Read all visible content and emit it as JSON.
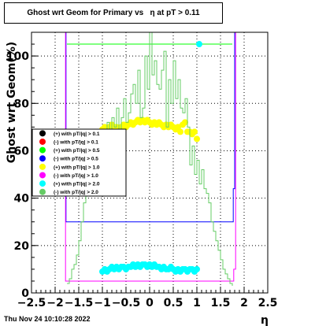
{
  "title": "Ghost wrt Geom for Primary vs   η at pT > 0.11",
  "footer": "Thu Nov 24 10:10:28 2022",
  "colors": {
    "black": "#000000",
    "red": "#ff0000",
    "green": "#00ff00",
    "blue": "#0000ff",
    "yellow": "#ffff00",
    "magenta": "#ff00ff",
    "cyan": "#00ffff",
    "lightgreen": "#66cc66"
  },
  "chart_data": {
    "type": "scatter",
    "title": "Ghost wrt Geom for Primary vs   η at pT > 0.11",
    "xlabel": "η",
    "ylabel": "Ghost wrt Geom(%)",
    "xlim": [
      -2.5,
      2.5
    ],
    "ylim": [
      0,
      110
    ],
    "xticks": [
      -2.5,
      -2,
      -1.5,
      -1,
      -0.5,
      0,
      0.5,
      1,
      1.5,
      2,
      2.5
    ],
    "xtick_labels": [
      "−2.5",
      "−2",
      "−1.5",
      "−1",
      "−0.5",
      "0",
      "0.5",
      "1",
      "1.5",
      "2",
      "2.5"
    ],
    "yticks": [
      0,
      20,
      40,
      60,
      80,
      100
    ],
    "ytick_labels": [
      "0",
      "20",
      "40",
      "60",
      "80",
      "100"
    ],
    "grid": true,
    "legend_position": "left-middle",
    "series": [
      {
        "name": "(+) with pT/|q| > 0.1",
        "color": "#000000",
        "style": "marker",
        "x": [],
        "y": []
      },
      {
        "name": "(-) with pT/|q| > 0.1",
        "color": "#ff0000",
        "style": "marker",
        "x": [],
        "y": []
      },
      {
        "name": "(+) with pT/|q| > 0.5",
        "color": "#00ff00",
        "style": "step",
        "x": [
          -1.75,
          1.75
        ],
        "y": [
          105,
          105
        ]
      },
      {
        "name": "(-) with pT/|q| > 0.5",
        "color": "#0000ff",
        "style": "step",
        "x": [
          -1.8,
          -1.77,
          1.77,
          1.8
        ],
        "y": [
          110,
          30,
          44,
          110
        ]
      },
      {
        "name": "(+) with pT/|q| > 1.0",
        "color": "#ffff00",
        "style": "marker",
        "x": [
          -1.0,
          -0.95,
          -0.9,
          -0.85,
          -0.8,
          -0.75,
          -0.7,
          -0.65,
          -0.6,
          -0.55,
          -0.5,
          -0.45,
          -0.4,
          -0.35,
          -0.3,
          -0.25,
          -0.2,
          -0.15,
          -0.1,
          -0.05,
          0.0,
          0.05,
          0.1,
          0.15,
          0.2,
          0.25,
          0.3,
          0.35,
          0.4,
          0.45,
          0.5,
          0.55,
          0.6,
          0.65,
          0.7,
          0.75,
          0.8,
          0.85,
          0.9,
          0.95,
          1.0
        ],
        "y": [
          69,
          70,
          69,
          70,
          71,
          70,
          70,
          69,
          70,
          71,
          70,
          71,
          72,
          71,
          72,
          73,
          72,
          73,
          72,
          73,
          72,
          71,
          72,
          71,
          72,
          71,
          70,
          71,
          70,
          71,
          70,
          69,
          70,
          68,
          71,
          72,
          68,
          68,
          67,
          68,
          65
        ]
      },
      {
        "name": "(-) with pT/|q| > 1.0",
        "color": "#ff00ff",
        "style": "step",
        "x": [
          -1.82,
          -1.78,
          1.78,
          1.82
        ],
        "y": [
          110,
          5,
          10,
          110
        ]
      },
      {
        "name": "(+) with pT/|q| > 2.0",
        "color": "#00ffff",
        "style": "marker",
        "x": [
          -1.0,
          -0.95,
          -0.9,
          -0.85,
          -0.8,
          -0.75,
          -0.7,
          -0.65,
          -0.6,
          -0.55,
          -0.5,
          -0.45,
          -0.4,
          -0.35,
          -0.3,
          -0.25,
          -0.2,
          -0.15,
          -0.1,
          -0.05,
          0.0,
          0.05,
          0.1,
          0.15,
          0.2,
          0.25,
          0.3,
          0.35,
          0.4,
          0.45,
          0.5,
          0.55,
          0.6,
          0.65,
          0.7,
          0.75,
          0.8,
          0.85,
          0.9,
          0.95,
          1.0,
          1.05
        ],
        "y": [
          9,
          10,
          9,
          10,
          11,
          10,
          11,
          10,
          11,
          11,
          10,
          11,
          11,
          12,
          11,
          12,
          11,
          12,
          12,
          11,
          12,
          11,
          12,
          11,
          11,
          10,
          11,
          10,
          10,
          11,
          10,
          9,
          10,
          9,
          10,
          10,
          9,
          10,
          10,
          9,
          10,
          105
        ]
      },
      {
        "name": "(-) with pT/|q| > 2.0",
        "color": "#66cc66",
        "style": "step",
        "x": [
          -1.75,
          -1.7,
          -1.65,
          -1.6,
          -1.55,
          -1.5,
          -1.45,
          -1.4,
          -1.35,
          -1.3,
          -1.25,
          -1.2,
          -1.15,
          -1.1,
          -1.05,
          -1.0,
          -0.95,
          -0.9,
          -0.85,
          -0.8,
          -0.75,
          -0.7,
          -0.65,
          -0.6,
          -0.55,
          -0.5,
          -0.45,
          -0.4,
          -0.35,
          -0.3,
          -0.25,
          -0.2,
          -0.15,
          -0.1,
          -0.05,
          0.0,
          0.05,
          0.1,
          0.15,
          0.2,
          0.25,
          0.3,
          0.35,
          0.4,
          0.45,
          0.5,
          0.55,
          0.6,
          0.65,
          0.7,
          0.75,
          0.8,
          0.85,
          0.9,
          0.95,
          1.0,
          1.05,
          1.1,
          1.15,
          1.2,
          1.25,
          1.3,
          1.35,
          1.4,
          1.45,
          1.5,
          1.55,
          1.6,
          1.65,
          1.7,
          1.75
        ],
        "y": [
          4,
          6,
          10,
          12,
          16,
          22,
          30,
          38,
          46,
          44,
          48,
          56,
          60,
          62,
          58,
          64,
          68,
          72,
          66,
          74,
          70,
          78,
          64,
          74,
          82,
          72,
          76,
          84,
          88,
          80,
          94,
          74,
          78,
          100,
          86,
          110,
          92,
          98,
          88,
          86,
          94,
          102,
          70,
          90,
          80,
          98,
          82,
          90,
          78,
          76,
          82,
          70,
          54,
          62,
          50,
          56,
          46,
          52,
          44,
          42,
          38,
          30,
          26,
          22,
          18,
          14,
          10,
          8,
          6,
          4,
          3
        ]
      }
    ]
  }
}
